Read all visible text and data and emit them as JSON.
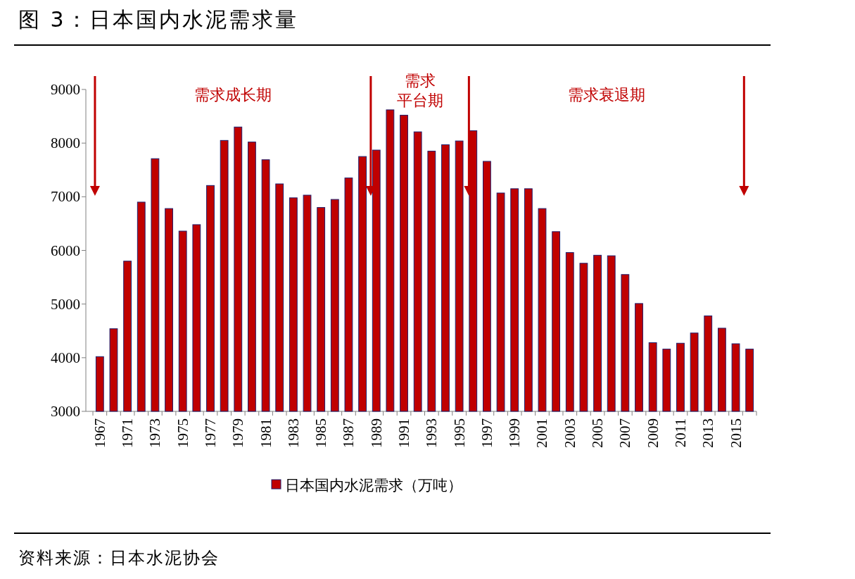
{
  "chart_data": {
    "type": "bar",
    "title": "图 3：日本国内水泥需求量",
    "categories": [
      "1967",
      null,
      "1971",
      null,
      "1973",
      null,
      "1975",
      null,
      "1977",
      null,
      "1979",
      null,
      "1981",
      null,
      "1983",
      null,
      "1985",
      null,
      "1987",
      null,
      "1989",
      null,
      "1991",
      null,
      "1993",
      null,
      "1995",
      null,
      "1997",
      null,
      "1999",
      null,
      "2001",
      null,
      "2003",
      null,
      "2005",
      null,
      "2007",
      null,
      "2009",
      null,
      "2011",
      null,
      "2013",
      null,
      "2015",
      null
    ],
    "series": [
      {
        "name": "日本国内水泥需求（万吨）",
        "color": "#c00000",
        "values": [
          4020,
          4540,
          5800,
          6900,
          7710,
          6780,
          6360,
          6480,
          7210,
          8050,
          8300,
          8020,
          7690,
          7240,
          6980,
          7030,
          6800,
          6950,
          7350,
          7750,
          7870,
          8620,
          8520,
          8210,
          7850,
          7970,
          8040,
          8230,
          7660,
          7070,
          7150,
          7150,
          6780,
          6350,
          5960,
          5760,
          5910,
          5900,
          5550,
          5010,
          4280,
          4160,
          4270,
          4460,
          4780,
          4550,
          4260,
          4160
        ]
      }
    ],
    "ylim": [
      3000,
      9000
    ],
    "yticks": [
      3000,
      4000,
      5000,
      6000,
      7000,
      8000,
      9000
    ],
    "legend": "bottom",
    "grid": false,
    "annotations": [
      "需求成长期",
      "需求平台期",
      "需求衰退期",
      "资料来源：日本水泥协会"
    ]
  }
}
